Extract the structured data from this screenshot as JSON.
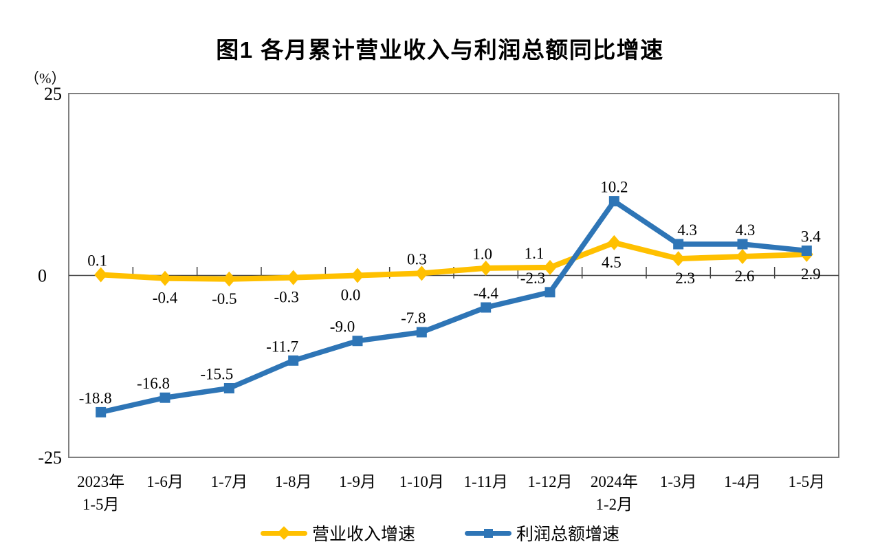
{
  "chart_data": {
    "type": "line",
    "title": "图1 各月累计营业收入与利润总额同比增速",
    "unit_label": "（%）",
    "grid": false,
    "legend_position": "bottom",
    "y_axis": {
      "min": -25,
      "max": 25,
      "tick_values": [
        25,
        0,
        -25
      ],
      "tick_labels": [
        "25",
        "0",
        "-25"
      ]
    },
    "categories": [
      "2023年\n1-5月",
      "1-6月",
      "1-7月",
      "1-8月",
      "1-9月",
      "1-10月",
      "1-11月",
      "1-12月",
      "2024年\n1-2月",
      "1-3月",
      "1-4月",
      "1-5月"
    ],
    "series": [
      {
        "id": "revenue-growth",
        "name": "营业收入增速",
        "color": "#FFC000",
        "marker": "diamond",
        "values": [
          0.1,
          -0.4,
          -0.5,
          -0.3,
          0.0,
          0.3,
          1.0,
          1.1,
          4.5,
          2.3,
          2.6,
          2.9
        ],
        "labels": [
          "0.1",
          "-0.4",
          "-0.5",
          "-0.3",
          "0.0",
          "0.3",
          "1.0",
          "1.1",
          "4.5",
          "2.3",
          "2.6",
          "2.9"
        ],
        "label_side": [
          "above",
          "below",
          "below",
          "below",
          "below",
          "above",
          "above",
          "above",
          "below",
          "below",
          "below",
          "below"
        ],
        "label_dx": [
          -5,
          0,
          -7,
          -10,
          -10,
          -7,
          -5,
          -23,
          -4,
          10,
          3,
          6
        ]
      },
      {
        "id": "profit-growth",
        "name": "利润总额增速",
        "color": "#2E75B6",
        "marker": "square",
        "values": [
          -18.8,
          -16.8,
          -15.5,
          -11.7,
          -9.0,
          -7.8,
          -4.4,
          -2.3,
          10.2,
          4.3,
          4.3,
          3.4
        ],
        "labels": [
          "-18.8",
          "-16.8",
          "-15.5",
          "-11.7",
          "-9.0",
          "-7.8",
          "-4.4",
          "-2.3",
          "10.2",
          "4.3",
          "4.3",
          "3.4"
        ],
        "label_side": [
          "above",
          "above",
          "above",
          "above",
          "above",
          "above",
          "above",
          "above",
          "above",
          "above",
          "above",
          "above"
        ],
        "label_dx": [
          -8,
          -17,
          -18,
          -16,
          -22,
          -12,
          0,
          -25,
          0,
          13,
          4,
          6
        ]
      }
    ]
  }
}
